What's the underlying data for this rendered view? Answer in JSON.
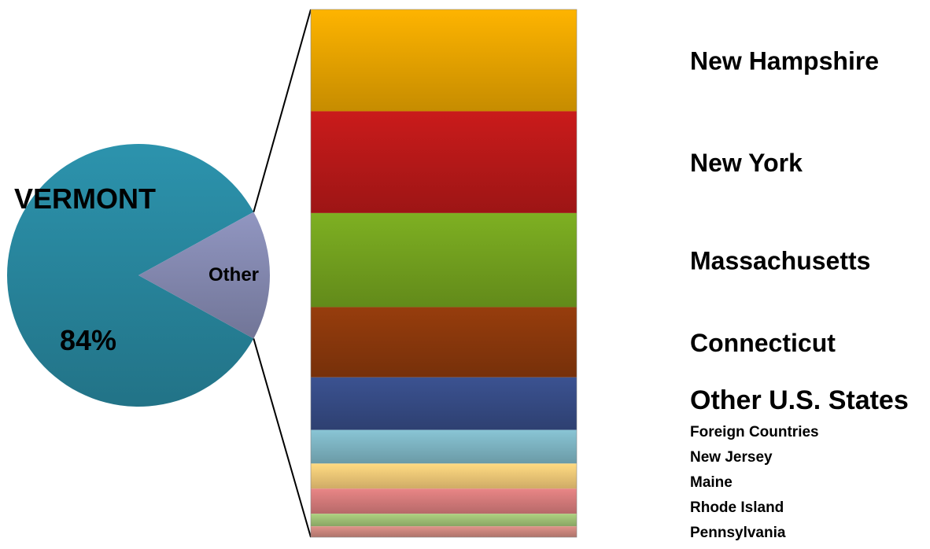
{
  "chart_data": {
    "type": "bar-of-pie",
    "pie": {
      "slices": [
        {
          "label": "VERMONT",
          "value_label": "84%",
          "value": 84,
          "color": "#2a8ca5"
        },
        {
          "label": "Other",
          "value": 16,
          "color": "#8a8fb8"
        }
      ]
    },
    "bar": {
      "segments": [
        {
          "label": "New Hampshire",
          "value": 3.0,
          "color": "#f2ab00"
        },
        {
          "label": "New York",
          "value": 3.0,
          "color": "#c01a1a"
        },
        {
          "label": "Massachusetts",
          "value": 2.77,
          "color": "#78a820"
        },
        {
          "label": "Connecticut",
          "value": 2.07,
          "color": "#903a0c"
        },
        {
          "label": "Other U.S. States",
          "value": 1.55,
          "color": "#384e8a"
        },
        {
          "label": "Foreign Countries",
          "value": 0.99,
          "color": "#82bccb"
        },
        {
          "label": "New Jersey",
          "value": 0.74,
          "color": "#fcd17c"
        },
        {
          "label": "Maine",
          "value": 0.74,
          "color": "#de8080"
        },
        {
          "label": "Rhode Island",
          "value": 0.37,
          "color": "#a6c87a"
        },
        {
          "label": "Pennsylvania",
          "value": 0.32,
          "color": "#d48c82"
        }
      ]
    }
  }
}
